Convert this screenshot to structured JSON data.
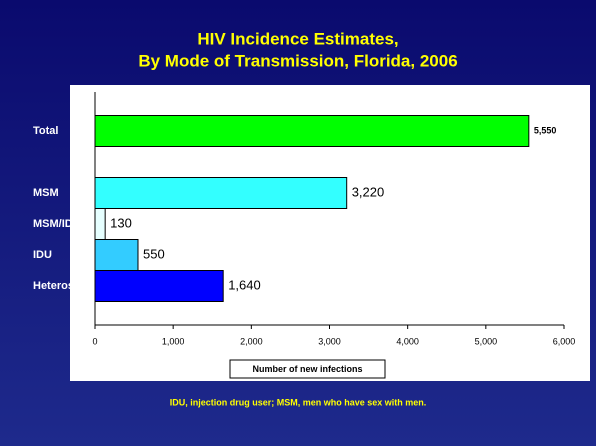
{
  "chart_data": {
    "type": "barh",
    "title": [
      "HIV Incidence Estimates,",
      "By Mode of Transmission, Florida, 2006"
    ],
    "categories": [
      "Total",
      null,
      "MSM",
      "MSM/IDU",
      "IDU",
      "Heterosexual"
    ],
    "values": [
      5550,
      null,
      3220,
      130,
      550,
      1640
    ],
    "value_labels": [
      "5,550",
      null,
      "3,220",
      "130",
      "550",
      "1,640"
    ],
    "colors": [
      "#00ff00",
      null,
      "#33ffff",
      "#e6ffff",
      "#33ccff",
      "#0000ff"
    ],
    "xlim": [
      0,
      6000
    ],
    "xticks": [
      0,
      {
        "value": 1000,
        "label": "1,000"
      },
      {
        "value": 2000,
        "label": "2,000"
      },
      {
        "value": 3000,
        "label": "3,000"
      },
      {
        "value": 4000,
        "label": "4,000"
      },
      {
        "value": 5000,
        "label": "5,000"
      },
      {
        "value": 6000,
        "label": "6,000"
      }
    ],
    "xlabel": "Number of new infections",
    "footnote": "IDU, injection drug user; MSM, men who have sex with men."
  }
}
